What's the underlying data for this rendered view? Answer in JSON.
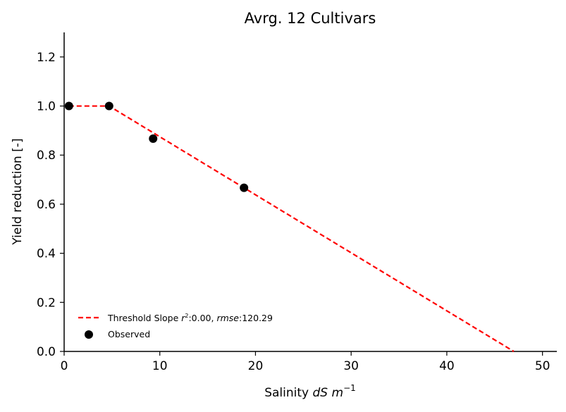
{
  "chart_data": {
    "type": "scatter",
    "title": "Avrg. 12 Cultivars",
    "xlabel_prefix": "Salinity ",
    "xlabel_var": "dS m",
    "xlabel_sup": "−1",
    "ylabel": "Yield reduction [-]",
    "xlim": [
      0,
      51.5
    ],
    "ylim": [
      0,
      1.3
    ],
    "x_ticks": [
      0,
      10,
      20,
      30,
      40,
      50
    ],
    "y_ticks": [
      0.0,
      0.2,
      0.4,
      0.6,
      0.8,
      1.0,
      1.2
    ],
    "x_tick_labels": [
      "0",
      "10",
      "20",
      "30",
      "40",
      "50"
    ],
    "y_tick_labels": [
      "0.0",
      "0.2",
      "0.4",
      "0.6",
      "0.8",
      "1.0",
      "1.2"
    ],
    "series": [
      {
        "name": "Threshold Slope",
        "kind": "line",
        "style": "dashed",
        "color": "#ff0000",
        "x": [
          0.5,
          4.7,
          47.0
        ],
        "y": [
          1.0,
          1.0,
          0.0
        ]
      },
      {
        "name": "Observed",
        "kind": "scatter",
        "color": "#000000",
        "x": [
          0.5,
          4.7,
          9.3,
          18.8
        ],
        "y": [
          1.0,
          1.0,
          0.867,
          0.667
        ]
      }
    ],
    "legend": {
      "placement": "lower-left",
      "line_name": "Threshold Slope ",
      "line_r2_label": "r",
      "line_r2_sup": "2",
      "line_r2_value": ":0.00, ",
      "line_rmse_label": "rmse",
      "line_rmse_value": ":120.29",
      "scatter_name": "Observed"
    },
    "grid": false
  }
}
